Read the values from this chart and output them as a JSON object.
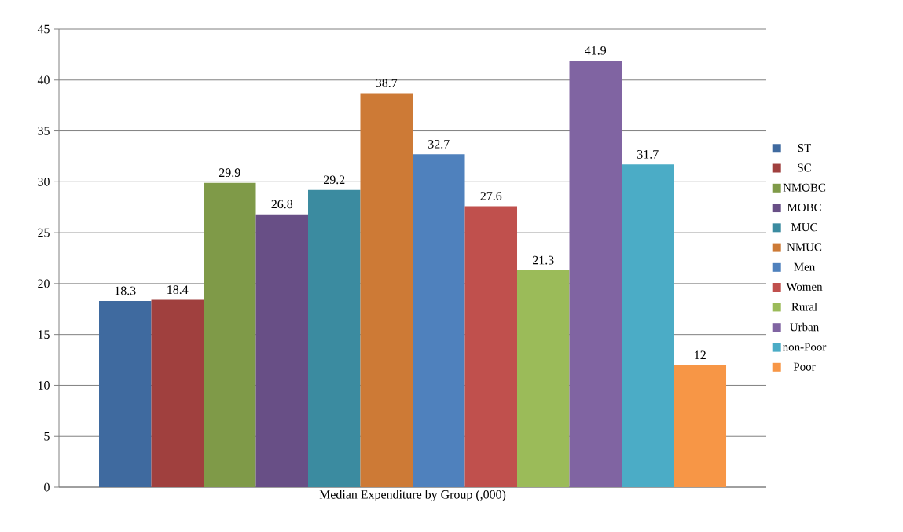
{
  "chart_data": {
    "type": "bar",
    "xlabel": "Median Expenditure by Group (,000)",
    "categories": [
      null
    ],
    "series": [
      {
        "name": "ST",
        "color": "#3f6a9f",
        "values": [
          18.3
        ]
      },
      {
        "name": "SC",
        "color": "#a0403e",
        "values": [
          18.4
        ]
      },
      {
        "name": "NMOBC",
        "color": "#7f9a48",
        "values": [
          29.9
        ]
      },
      {
        "name": "MOBC",
        "color": "#684f86",
        "values": [
          26.8
        ]
      },
      {
        "name": "MUC",
        "color": "#3b8ba0",
        "values": [
          29.2
        ]
      },
      {
        "name": "NMUC",
        "color": "#cd7a36",
        "values": [
          38.7
        ]
      },
      {
        "name": "Men",
        "color": "#4f81bd",
        "values": [
          32.7
        ]
      },
      {
        "name": "Women",
        "color": "#c0504d",
        "values": [
          27.6
        ]
      },
      {
        "name": "Rural",
        "color": "#9bbb59",
        "values": [
          21.3
        ]
      },
      {
        "name": "Urban",
        "color": "#8064a2",
        "values": [
          41.9
        ]
      },
      {
        "name": "non-Poor",
        "color": "#4bacc6",
        "values": [
          31.7
        ]
      },
      {
        "name": "Poor",
        "color": "#f79646",
        "values": [
          12
        ]
      }
    ],
    "ylim": [
      0,
      45
    ],
    "yticks": [
      0,
      5,
      10,
      15,
      20,
      25,
      30,
      35,
      40,
      45
    ],
    "grid": "y",
    "legend": "right",
    "data_labels": true
  }
}
